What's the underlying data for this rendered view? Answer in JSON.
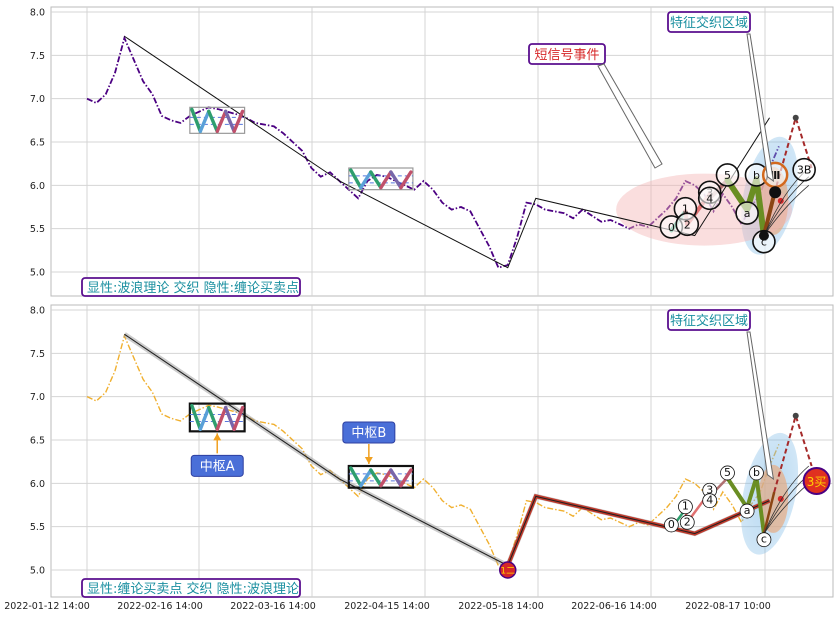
{
  "chart_data": [
    {
      "type": "line",
      "panel": "top",
      "yticks": [
        "8.0",
        "7.5",
        "7.0",
        "6.5",
        "6.0",
        "5.5",
        "5.0"
      ],
      "ylim": [
        4.88,
        8.05
      ],
      "grid": true,
      "price_color": "#4b0082",
      "price_series": [
        [
          0,
          7.0
        ],
        [
          1,
          6.95
        ],
        [
          2,
          7.05
        ],
        [
          3,
          7.3
        ],
        [
          4,
          7.7
        ],
        [
          5,
          7.45
        ],
        [
          6,
          7.2
        ],
        [
          7,
          7.05
        ],
        [
          8,
          6.8
        ],
        [
          9,
          6.75
        ],
        [
          10,
          6.72
        ],
        [
          11,
          6.8
        ],
        [
          12,
          6.85
        ],
        [
          13,
          6.9
        ],
        [
          14,
          6.88
        ],
        [
          15,
          6.85
        ],
        [
          16,
          6.82
        ],
        [
          17,
          6.78
        ],
        [
          18,
          6.72
        ],
        [
          19,
          6.7
        ],
        [
          20,
          6.68
        ],
        [
          21,
          6.6
        ],
        [
          22,
          6.5
        ],
        [
          23,
          6.4
        ],
        [
          24,
          6.2
        ],
        [
          25,
          6.1
        ],
        [
          26,
          6.15
        ],
        [
          27,
          6.05
        ],
        [
          28,
          5.95
        ],
        [
          29,
          5.85
        ],
        [
          30,
          6.05
        ],
        [
          31,
          6.12
        ],
        [
          32,
          6.1
        ],
        [
          33,
          6.05
        ],
        [
          34,
          6.0
        ],
        [
          35,
          5.95
        ],
        [
          36,
          6.05
        ],
        [
          37,
          5.95
        ],
        [
          38,
          5.8
        ],
        [
          39,
          5.72
        ],
        [
          40,
          5.75
        ],
        [
          41,
          5.7
        ],
        [
          42,
          5.5
        ],
        [
          43,
          5.3
        ],
        [
          44,
          5.05
        ],
        [
          45,
          5.08
        ],
        [
          46,
          5.4
        ],
        [
          47,
          5.8
        ],
        [
          48,
          5.78
        ],
        [
          49,
          5.72
        ],
        [
          50,
          5.7
        ],
        [
          51,
          5.68
        ],
        [
          52,
          5.62
        ],
        [
          53,
          5.72
        ],
        [
          54,
          5.65
        ],
        [
          55,
          5.58
        ],
        [
          56,
          5.6
        ],
        [
          57,
          5.55
        ],
        [
          58,
          5.5
        ],
        [
          59,
          5.55
        ],
        [
          60,
          5.52
        ],
        [
          61,
          5.62
        ],
        [
          62,
          5.72
        ],
        [
          63,
          5.85
        ],
        [
          64,
          6.05
        ],
        [
          65,
          6.0
        ],
        [
          66,
          5.9
        ],
        [
          67,
          5.7
        ],
        [
          68,
          5.9
        ],
        [
          69,
          5.75
        ],
        [
          70,
          5.55
        ],
        [
          71,
          5.75
        ],
        [
          72,
          5.9
        ],
        [
          73,
          6.2
        ],
        [
          74,
          6.45
        ]
      ],
      "trend_path": [
        [
          4,
          7.72
        ],
        [
          27,
          6.05
        ],
        [
          45,
          5.05
        ],
        [
          48,
          5.85
        ],
        [
          65,
          5.42
        ],
        [
          73,
          6.78
        ]
      ],
      "zhongshu": [
        {
          "x": [
            11,
            16
          ],
          "y": [
            6.6,
            6.9
          ]
        },
        {
          "x": [
            28,
            34
          ],
          "y": [
            5.95,
            6.2
          ]
        }
      ],
      "wave_points": [
        {
          "x": 62.5,
          "y": 5.52,
          "label": "0"
        },
        {
          "x": 64,
          "y": 5.73,
          "label": "1"
        },
        {
          "x": 64.2,
          "y": 5.55,
          "label": "2"
        },
        {
          "x": 66.6,
          "y": 5.92,
          "label": "3"
        },
        {
          "x": 66.6,
          "y": 5.85,
          "label": "4"
        },
        {
          "x": 68.5,
          "y": 6.12,
          "label": "5"
        },
        {
          "x": 70.6,
          "y": 5.68,
          "label": "a"
        },
        {
          "x": 71.6,
          "y": 6.12,
          "label": "b"
        },
        {
          "x": 72.4,
          "y": 5.35,
          "label": "c"
        },
        {
          "x": 73.6,
          "y": 6.12,
          "label": "Ⅲ"
        },
        {
          "x": 76.7,
          "y": 6.18,
          "label": "3B"
        }
      ],
      "annotations": [
        "特征交织区域",
        "短信号事件"
      ],
      "legend": "显性:波浪理论 交织 隐性:缠论买卖点"
    },
    {
      "type": "line",
      "panel": "bottom",
      "yticks": [
        "8.0",
        "7.5",
        "7.0",
        "6.5",
        "6.0",
        "5.5",
        "5.0"
      ],
      "ylim": [
        4.88,
        8.05
      ],
      "grid": true,
      "price_color": "#f0b030",
      "xticks": [
        "2022-01-12 14:00",
        "2022-02-16 14:00",
        "2022-03-16 14:00",
        "2022-04-15 14:00",
        "2022-05-18 14:00",
        "2022-06-16 14:00",
        "2022-08-17 10:00"
      ],
      "trend_path": [
        [
          4,
          7.72
        ],
        [
          27,
          6.05
        ],
        [
          45,
          5.05
        ],
        [
          48,
          5.85
        ],
        [
          65,
          5.42
        ],
        [
          73,
          5.8
        ]
      ],
      "zhongshu": [
        {
          "x": [
            11,
            16
          ],
          "y": [
            6.6,
            6.92
          ],
          "label": "中枢A"
        },
        {
          "x": [
            28,
            34
          ],
          "y": [
            5.95,
            6.2
          ],
          "label": "中枢B"
        }
      ],
      "wave_points": [
        {
          "x": 62.5,
          "y": 5.52,
          "label": "0"
        },
        {
          "x": 64,
          "y": 5.73,
          "label": "1"
        },
        {
          "x": 64.2,
          "y": 5.55,
          "label": "2"
        },
        {
          "x": 66.6,
          "y": 5.92,
          "label": "3"
        },
        {
          "x": 66.6,
          "y": 5.8,
          "label": "4"
        },
        {
          "x": 68.5,
          "y": 6.12,
          "label": "5"
        },
        {
          "x": 70.6,
          "y": 5.68,
          "label": "a"
        },
        {
          "x": 71.6,
          "y": 6.12,
          "label": "b"
        },
        {
          "x": 72.4,
          "y": 5.35,
          "label": "c"
        }
      ],
      "buy_points": [
        {
          "x": 45,
          "y": 5.0,
          "label": "1二"
        },
        {
          "x": 77.5,
          "y": 6.05,
          "label": "3买"
        }
      ],
      "annotations": [
        "特征交织区域"
      ],
      "legend": "显性:缠论买卖点 交织 隐性:波浪理论"
    }
  ],
  "top": {
    "legend": "显性:波浪理论 交织 隐性:缠论买卖点",
    "callout_zone": "特征交织区域",
    "callout_signal": "短信号事件"
  },
  "bottom": {
    "legend": "显性:缠论买卖点 交织 隐性:波浪理论",
    "callout_zone": "特征交织区域",
    "zhongshu_a": "中枢A",
    "zhongshu_b": "中枢B",
    "buy_1": "1二",
    "buy_3": "3买"
  },
  "colors": {
    "purple": "#4b0082",
    "orange": "#f0b030",
    "teal": "#1a8fa0",
    "callout_border": "#5a0f8f",
    "sell_red": "#d62728",
    "wave_green": "#6a8e23"
  }
}
